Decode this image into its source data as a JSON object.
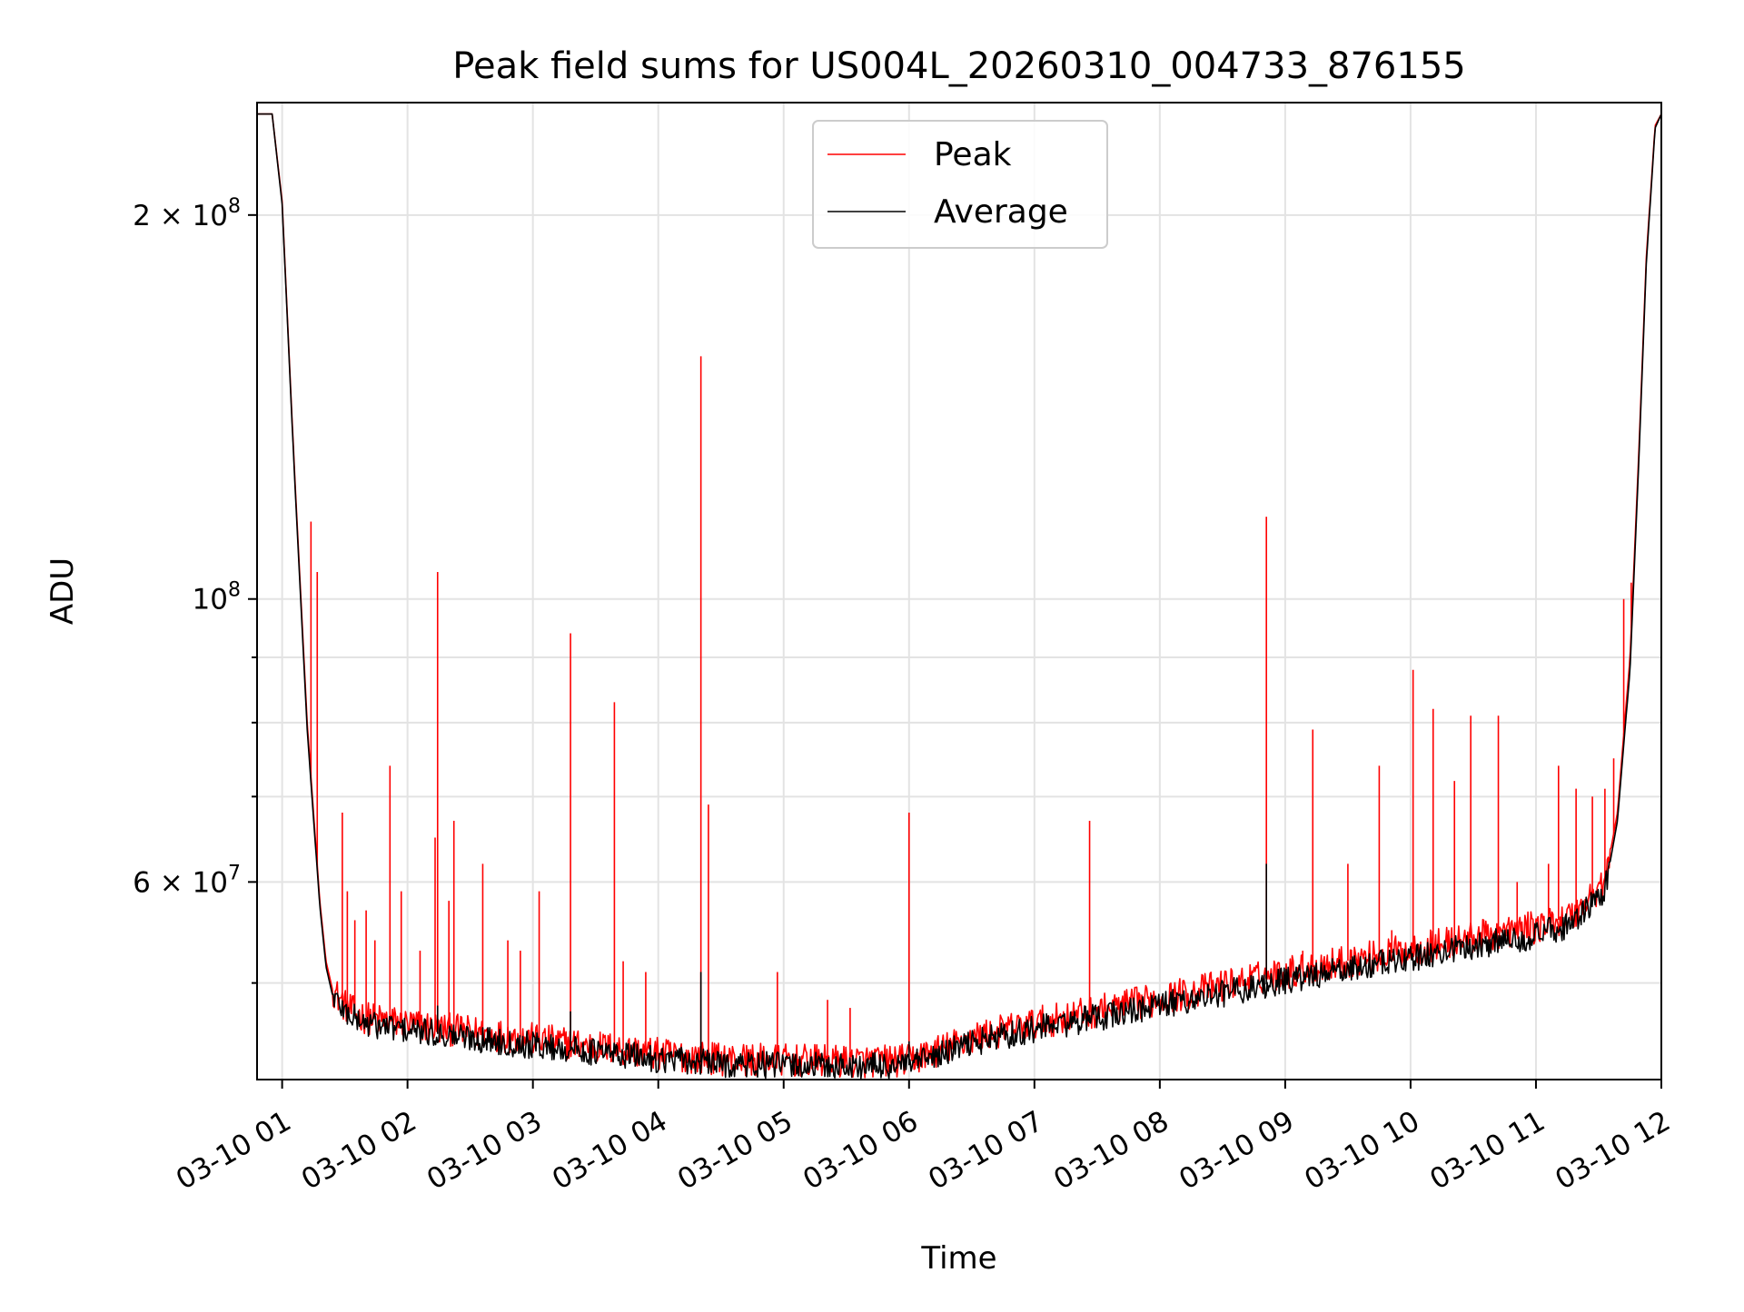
{
  "chart_data": {
    "type": "line",
    "title": "Peak field sums for US004L_20260310_004733_876155",
    "xlabel": "Time",
    "ylabel": "ADU",
    "yscale": "log",
    "ylim": [
      42000000,
      245000000
    ],
    "xlim_hours": [
      0.8,
      12.0
    ],
    "grid": true,
    "legend_position": "upper center",
    "x_ticks": [
      {
        "hour": 1,
        "label": "03-10 01"
      },
      {
        "hour": 2,
        "label": "03-10 02"
      },
      {
        "hour": 3,
        "label": "03-10 03"
      },
      {
        "hour": 4,
        "label": "03-10 04"
      },
      {
        "hour": 5,
        "label": "03-10 05"
      },
      {
        "hour": 6,
        "label": "03-10 06"
      },
      {
        "hour": 7,
        "label": "03-10 07"
      },
      {
        "hour": 8,
        "label": "03-10 08"
      },
      {
        "hour": 9,
        "label": "03-10 09"
      },
      {
        "hour": 10,
        "label": "03-10 10"
      },
      {
        "hour": 11,
        "label": "03-10 11"
      },
      {
        "hour": 12,
        "label": "03-10 12"
      }
    ],
    "y_major_ticks": [
      {
        "value": 60000000,
        "mant": "6",
        "exp": "7"
      },
      {
        "value": 100000000,
        "mant": "",
        "exp": "8"
      },
      {
        "value": 200000000,
        "mant": "2",
        "exp": "8"
      }
    ],
    "y_minor_ticks": [
      50000000,
      70000000,
      80000000,
      90000000
    ],
    "series": [
      {
        "name": "Peak",
        "color": "#ff0000",
        "baseline_hours": [
          0.8,
          0.92,
          1.0,
          1.1,
          1.2,
          1.3,
          1.35,
          1.4,
          1.5,
          1.6,
          1.7,
          1.9,
          2.0,
          3.0,
          4.0,
          4.5,
          5.0,
          5.6,
          6.0,
          6.3,
          6.5,
          7.0,
          8.0,
          9.0,
          10.0,
          10.5,
          11.0,
          11.3,
          11.55,
          11.65,
          11.75,
          11.82,
          11.88,
          11.95,
          12.0
        ],
        "baseline_values": [
          240000000,
          240000000,
          205000000,
          125000000,
          80000000,
          58000000,
          52000000,
          49500000,
          48000000,
          47200000,
          46900000,
          46600000,
          46400000,
          45200000,
          44000000,
          43600000,
          43500000,
          43400000,
          43500000,
          44500000,
          45300000,
          46500000,
          48600000,
          51000000,
          53100000,
          54300000,
          55300000,
          56500000,
          60000000,
          68000000,
          90000000,
          130000000,
          185000000,
          235000000,
          240000000
        ],
        "spikes": [
          {
            "hour": 1.23,
            "value": 115000000
          },
          {
            "hour": 1.28,
            "value": 105000000
          },
          {
            "hour": 1.48,
            "value": 68000000
          },
          {
            "hour": 1.52,
            "value": 59000000
          },
          {
            "hour": 1.58,
            "value": 56000000
          },
          {
            "hour": 1.67,
            "value": 57000000
          },
          {
            "hour": 1.74,
            "value": 54000000
          },
          {
            "hour": 1.86,
            "value": 74000000
          },
          {
            "hour": 1.95,
            "value": 59000000
          },
          {
            "hour": 2.1,
            "value": 53000000
          },
          {
            "hour": 2.22,
            "value": 65000000
          },
          {
            "hour": 2.24,
            "value": 105000000
          },
          {
            "hour": 2.33,
            "value": 58000000
          },
          {
            "hour": 2.37,
            "value": 67000000
          },
          {
            "hour": 2.6,
            "value": 62000000
          },
          {
            "hour": 2.8,
            "value": 54000000
          },
          {
            "hour": 2.9,
            "value": 53000000
          },
          {
            "hour": 3.05,
            "value": 59000000
          },
          {
            "hour": 3.3,
            "value": 94000000
          },
          {
            "hour": 3.65,
            "value": 83000000
          },
          {
            "hour": 3.72,
            "value": 52000000
          },
          {
            "hour": 3.9,
            "value": 51000000
          },
          {
            "hour": 4.34,
            "value": 155000000
          },
          {
            "hour": 4.4,
            "value": 69000000
          },
          {
            "hour": 4.95,
            "value": 51000000
          },
          {
            "hour": 5.35,
            "value": 48500000
          },
          {
            "hour": 5.53,
            "value": 47800000
          },
          {
            "hour": 6.0,
            "value": 68000000
          },
          {
            "hour": 6.3,
            "value": 45000000
          },
          {
            "hour": 7.44,
            "value": 67000000
          },
          {
            "hour": 8.85,
            "value": 116000000
          },
          {
            "hour": 9.22,
            "value": 79000000
          },
          {
            "hour": 9.14,
            "value": 53000000
          },
          {
            "hour": 9.5,
            "value": 62000000
          },
          {
            "hour": 9.75,
            "value": 74000000
          },
          {
            "hour": 9.85,
            "value": 55000000
          },
          {
            "hour": 10.02,
            "value": 88000000
          },
          {
            "hour": 10.18,
            "value": 82000000
          },
          {
            "hour": 10.35,
            "value": 72000000
          },
          {
            "hour": 10.48,
            "value": 81000000
          },
          {
            "hour": 10.7,
            "value": 81000000
          },
          {
            "hour": 10.85,
            "value": 60000000
          },
          {
            "hour": 11.1,
            "value": 62000000
          },
          {
            "hour": 11.18,
            "value": 74000000
          },
          {
            "hour": 11.32,
            "value": 71000000
          },
          {
            "hour": 11.45,
            "value": 70000000
          },
          {
            "hour": 11.55,
            "value": 71000000
          },
          {
            "hour": 11.62,
            "value": 75000000
          },
          {
            "hour": 11.7,
            "value": 100000000
          },
          {
            "hour": 11.76,
            "value": 103000000
          }
        ]
      },
      {
        "name": "Average",
        "color": "#000000",
        "baseline_hours": [
          0.8,
          0.92,
          1.0,
          1.1,
          1.2,
          1.3,
          1.35,
          1.4,
          1.5,
          1.6,
          1.7,
          1.9,
          2.0,
          3.0,
          4.0,
          4.5,
          5.0,
          5.6,
          6.0,
          6.3,
          6.5,
          7.0,
          8.0,
          9.0,
          10.0,
          10.5,
          11.0,
          11.3,
          11.55,
          11.65,
          11.75,
          11.82,
          11.88,
          11.95,
          12.0
        ],
        "baseline_values": [
          240000000,
          240000000,
          204000000,
          124000000,
          79000000,
          57500000,
          51500000,
          49000000,
          47500000,
          46800000,
          46400000,
          46100000,
          45900000,
          44700000,
          43600000,
          43200000,
          43100000,
          43000000,
          43100000,
          44100000,
          44900000,
          46000000,
          48000000,
          50200000,
          52300000,
          53500000,
          54500000,
          55700000,
          59000000,
          67000000,
          88000000,
          128000000,
          183000000,
          234000000,
          240000000
        ],
        "spikes": [
          {
            "hour": 4.34,
            "value": 51000000
          },
          {
            "hour": 8.85,
            "value": 62000000
          },
          {
            "hour": 2.24,
            "value": 48000000
          },
          {
            "hour": 3.3,
            "value": 47500000
          },
          {
            "hour": 6.0,
            "value": 45000000
          },
          {
            "hour": 7.44,
            "value": 46500000
          }
        ]
      }
    ]
  }
}
